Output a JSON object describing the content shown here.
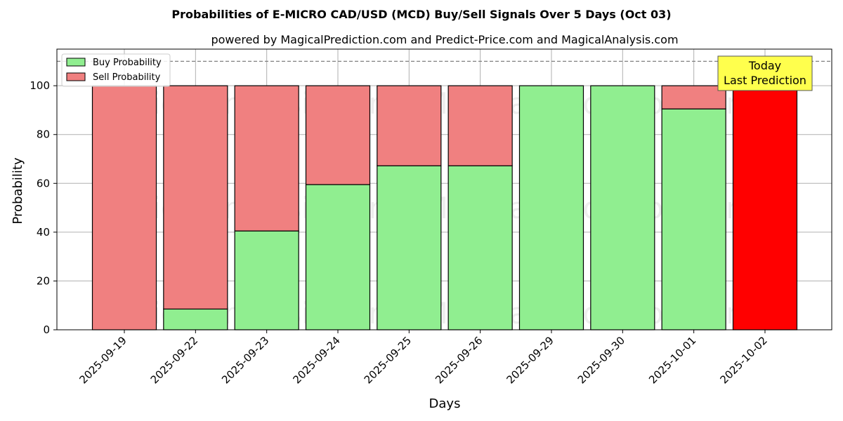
{
  "chart_data": {
    "type": "bar",
    "stacked": true,
    "title": "Probabilities of E-MICRO CAD/USD (MCD) Buy/Sell Signals Over 5 Days (Oct 03)",
    "subtitle": "powered by MagicalPrediction.com and Predict-Price.com and MagicalAnalysis.com",
    "xlabel": "Days",
    "ylabel": "Probability",
    "ylim": [
      0,
      115
    ],
    "yticks": [
      0,
      20,
      40,
      60,
      80,
      100
    ],
    "grid": true,
    "legend_position": "top-left",
    "reference_line": 110,
    "categories": [
      "2025-09-19",
      "2025-09-22",
      "2025-09-23",
      "2025-09-24",
      "2025-09-25",
      "2025-09-26",
      "2025-09-29",
      "2025-09-30",
      "2025-10-01",
      "2025-10-02"
    ],
    "series": [
      {
        "name": "Buy Probability",
        "color": "#90ee90",
        "values": [
          0,
          8.5,
          40.5,
          59.5,
          67.2,
          67.2,
          100,
          100,
          90.5,
          0
        ]
      },
      {
        "name": "Sell Probability",
        "color": "#f08080",
        "values": [
          100,
          91.5,
          59.5,
          40.5,
          32.8,
          32.8,
          0,
          0,
          9.5,
          100
        ]
      }
    ],
    "highlight": {
      "index": 9,
      "color": "#ff0000"
    },
    "annotation": {
      "lines": [
        "Today",
        "Last Prediction"
      ],
      "background": "#ffff4d"
    },
    "watermarks": [
      "MagicalAnalysis.com",
      "MagicalPrediction.com"
    ]
  }
}
